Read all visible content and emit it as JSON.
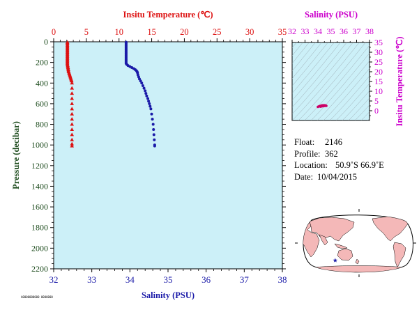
{
  "chart_data": [
    {
      "type": "scatter",
      "panel": "main-profile",
      "top_axis": {
        "label": "Insitu Temperature (℃)",
        "range": [
          0,
          35
        ],
        "ticks": [
          0,
          5,
          10,
          15,
          20,
          25,
          30,
          35
        ],
        "color": "#dd1111"
      },
      "bottom_axis": {
        "label": "Salinity (PSU)",
        "range": [
          32,
          38
        ],
        "ticks": [
          32,
          33,
          34,
          35,
          36,
          37,
          38
        ],
        "color": "#1a1aa8"
      },
      "left_axis": {
        "label": "Pressure (decibar)",
        "range": [
          0,
          2200
        ],
        "inverted": true,
        "ticks": [
          0,
          200,
          400,
          600,
          800,
          1000,
          1200,
          1400,
          1600,
          1800,
          2000,
          2200
        ],
        "color": "#1f4d1f"
      },
      "grid": false,
      "series": [
        {
          "marker": "triangle",
          "color": "#dd1111",
          "axis": "temperature",
          "points": [
            [
              2.1,
              4
            ],
            [
              2.1,
              10
            ],
            [
              2.1,
              20
            ],
            [
              2.1,
              30
            ],
            [
              2.1,
              40
            ],
            [
              2.1,
              50
            ],
            [
              2.1,
              60
            ],
            [
              2.1,
              70
            ],
            [
              2.1,
              80
            ],
            [
              2.1,
              90
            ],
            [
              2.1,
              100
            ],
            [
              2.1,
              110
            ],
            [
              2.1,
              120
            ],
            [
              2.1,
              130
            ],
            [
              2.1,
              140
            ],
            [
              2.1,
              150
            ],
            [
              2.1,
              160
            ],
            [
              2.1,
              170
            ],
            [
              2.1,
              180
            ],
            [
              2.1,
              190
            ],
            [
              2.1,
              200
            ],
            [
              2.1,
              210
            ],
            [
              2.1,
              220
            ],
            [
              2.15,
              230
            ],
            [
              2.15,
              240
            ],
            [
              2.2,
              250
            ],
            [
              2.2,
              260
            ],
            [
              2.25,
              270
            ],
            [
              2.25,
              280
            ],
            [
              2.3,
              290
            ],
            [
              2.35,
              300
            ],
            [
              2.4,
              310
            ],
            [
              2.45,
              320
            ],
            [
              2.5,
              330
            ],
            [
              2.55,
              340
            ],
            [
              2.6,
              350
            ],
            [
              2.65,
              360
            ],
            [
              2.7,
              370
            ],
            [
              2.75,
              380
            ],
            [
              2.8,
              400
            ],
            [
              2.8,
              450
            ],
            [
              2.8,
              500
            ],
            [
              2.8,
              550
            ],
            [
              2.8,
              600
            ],
            [
              2.8,
              650
            ],
            [
              2.8,
              700
            ],
            [
              2.8,
              750
            ],
            [
              2.8,
              800
            ],
            [
              2.8,
              850
            ],
            [
              2.8,
              900
            ],
            [
              2.8,
              950
            ],
            [
              2.8,
              990
            ],
            [
              2.8,
              1010
            ]
          ]
        },
        {
          "marker": "dot",
          "color": "#1a1aa8",
          "axis": "salinity",
          "points": [
            [
              33.9,
              4
            ],
            [
              33.9,
              10
            ],
            [
              33.9,
              20
            ],
            [
              33.9,
              30
            ],
            [
              33.9,
              40
            ],
            [
              33.9,
              50
            ],
            [
              33.9,
              60
            ],
            [
              33.9,
              70
            ],
            [
              33.9,
              80
            ],
            [
              33.9,
              90
            ],
            [
              33.9,
              100
            ],
            [
              33.9,
              110
            ],
            [
              33.9,
              120
            ],
            [
              33.9,
              130
            ],
            [
              33.9,
              140
            ],
            [
              33.9,
              150
            ],
            [
              33.9,
              160
            ],
            [
              33.9,
              170
            ],
            [
              33.9,
              180
            ],
            [
              33.9,
              190
            ],
            [
              33.9,
              200
            ],
            [
              33.9,
              210
            ],
            [
              33.92,
              220
            ],
            [
              33.95,
              230
            ],
            [
              34.0,
              240
            ],
            [
              34.05,
              250
            ],
            [
              34.1,
              260
            ],
            [
              34.14,
              270
            ],
            [
              34.17,
              280
            ],
            [
              34.19,
              290
            ],
            [
              34.2,
              300
            ],
            [
              34.21,
              320
            ],
            [
              34.23,
              340
            ],
            [
              34.25,
              360
            ],
            [
              34.28,
              380
            ],
            [
              34.31,
              400
            ],
            [
              34.34,
              425
            ],
            [
              34.37,
              450
            ],
            [
              34.4,
              475
            ],
            [
              34.42,
              500
            ],
            [
              34.44,
              525
            ],
            [
              34.47,
              550
            ],
            [
              34.49,
              575
            ],
            [
              34.51,
              600
            ],
            [
              34.53,
              625
            ],
            [
              34.55,
              650
            ],
            [
              34.57,
              700
            ],
            [
              34.59,
              750
            ],
            [
              34.61,
              800
            ],
            [
              34.62,
              850
            ],
            [
              34.63,
              900
            ],
            [
              34.64,
              950
            ],
            [
              34.65,
              1000
            ],
            [
              34.65,
              1010
            ]
          ]
        }
      ]
    },
    {
      "type": "scatter",
      "panel": "ts-diagram",
      "top_axis": {
        "label": "Salinity (PSU)",
        "range": [
          32,
          38
        ],
        "ticks": [
          32,
          33,
          34,
          35,
          36,
          37,
          38
        ],
        "color": "#cc00cc"
      },
      "right_axis": {
        "label": "Insitu Temperature (℃)",
        "range": [
          -5,
          35
        ],
        "ticks": [
          0,
          5,
          10,
          15,
          20,
          25,
          30,
          35
        ],
        "color": "#cc00cc"
      },
      "density_contours": true,
      "series": [
        {
          "color": "#cc0066",
          "points": [
            [
              34.0,
              2.0
            ],
            [
              34.1,
              2.3
            ],
            [
              34.2,
              2.5
            ],
            [
              34.3,
              2.7
            ],
            [
              34.4,
              2.8
            ],
            [
              34.5,
              2.8
            ],
            [
              34.6,
              2.7
            ],
            [
              34.65,
              2.5
            ],
            [
              34.2,
              2.1
            ],
            [
              34.4,
              2.4
            ]
          ]
        }
      ]
    }
  ],
  "info": {
    "float_label": "Float:",
    "float_value": "2146",
    "profile_label": "Profile:",
    "profile_value": "362",
    "location_label": "Location:",
    "location_value": "50.9˚S  66.9˚E",
    "date_label": "Date:",
    "date_value": "10/04/2015"
  },
  "map": {
    "projection": "robinson",
    "marker": "star",
    "marker_color": "#1a1aa8",
    "land_color": "#f4b8b8",
    "ocean_color": "#ffffff",
    "location": {
      "lat": -50.9,
      "lon": 66.9
    }
  },
  "footer": {
    "code": "A0000000000 0000000"
  },
  "colors": {
    "plot_bg": "#ccf0f8",
    "ts_bg": "#ccf0f8"
  }
}
